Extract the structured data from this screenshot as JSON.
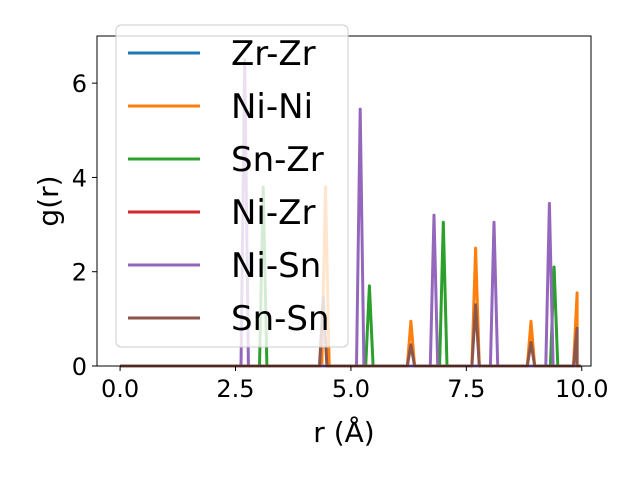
{
  "chart_data": {
    "type": "line",
    "xlabel": "r (Å)",
    "ylabel": "g(r)",
    "xlim": [
      -0.5,
      10.2
    ],
    "ylim": [
      0,
      7
    ],
    "xticks": [
      "0.0",
      "2.5",
      "5.0",
      "7.5",
      "10.0"
    ],
    "yticks": [
      "0",
      "2",
      "4",
      "6"
    ],
    "grid": false,
    "legend_position": "top-left",
    "series": [
      {
        "name": "Zr-Zr",
        "color": "#1f77b4",
        "peaks": []
      },
      {
        "name": "Ni-Ni",
        "color": "#ff7f0e",
        "peaks": [
          [
            4.45,
            3.8
          ],
          [
            6.3,
            0.95
          ],
          [
            7.7,
            2.5
          ],
          [
            8.9,
            0.95
          ],
          [
            9.9,
            1.55
          ]
        ]
      },
      {
        "name": "Sn-Zr",
        "color": "#2ca02c",
        "peaks": [
          [
            3.1,
            3.8
          ],
          [
            5.4,
            1.7
          ],
          [
            7.0,
            3.05
          ],
          [
            9.4,
            2.1
          ]
        ]
      },
      {
        "name": "Ni-Zr",
        "color": "#d62728",
        "peaks": []
      },
      {
        "name": "Ni-Sn",
        "color": "#9467bd",
        "peaks": [
          [
            2.7,
            6.5
          ],
          [
            5.2,
            5.45
          ],
          [
            6.8,
            3.2
          ],
          [
            8.1,
            3.05
          ],
          [
            9.3,
            3.45
          ]
        ]
      },
      {
        "name": "Sn-Sn",
        "color": "#8c564b",
        "peaks": [
          [
            4.4,
            1.45
          ],
          [
            6.3,
            0.45
          ],
          [
            7.7,
            1.3
          ],
          [
            8.9,
            0.5
          ],
          [
            9.9,
            0.8
          ]
        ]
      }
    ]
  }
}
